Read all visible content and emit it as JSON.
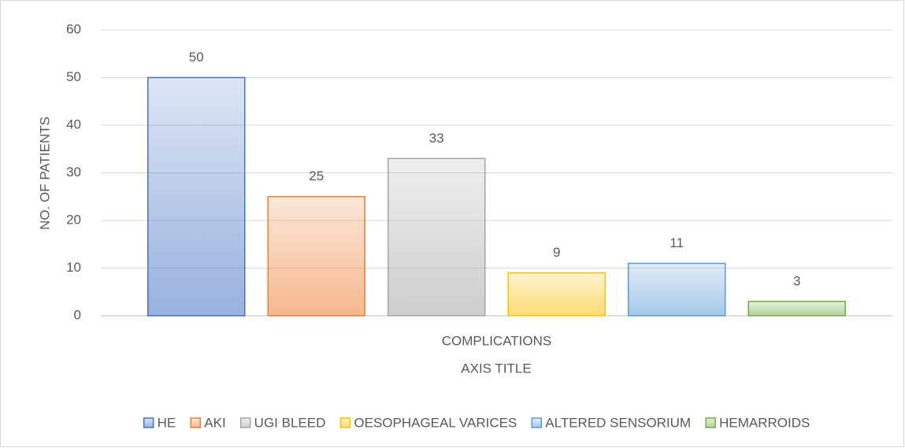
{
  "chart_data": {
    "type": "bar",
    "categories": [
      "COMPLICATIONS"
    ],
    "x_label": "AXIS TITLE",
    "y_label": "NO. OF PATIENTS",
    "series": [
      {
        "name": "HE",
        "color": "#4472c4",
        "values": [
          50
        ]
      },
      {
        "name": "AKI",
        "color": "#ed7d31",
        "values": [
          25
        ]
      },
      {
        "name": "UGI BLEED",
        "color": "#a5a5a5",
        "values": [
          33
        ]
      },
      {
        "name": "OESOPHAGEAL VARICES",
        "color": "#ffc000",
        "values": [
          9
        ]
      },
      {
        "name": "ALTERED SENSORIUM",
        "color": "#5b9bd5",
        "values": [
          11
        ]
      },
      {
        "name": "HEMARROIDS",
        "color": "#70ad47",
        "values": [
          3
        ]
      }
    ],
    "ylim": [
      0,
      60
    ],
    "yticks": [
      0,
      10,
      20,
      30,
      40,
      50,
      60
    ],
    "grid": true,
    "legend": "bottom"
  }
}
